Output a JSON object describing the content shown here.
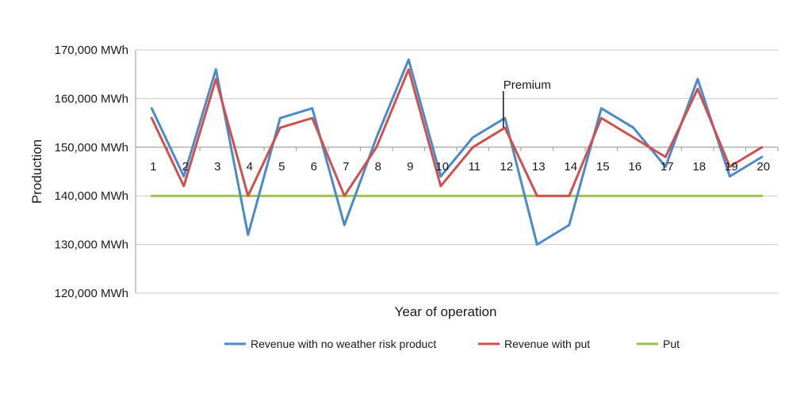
{
  "chart_data": {
    "type": "line",
    "xlabel": "Year of operation",
    "ylabel": "Production",
    "ylim": [
      120000,
      170000
    ],
    "yticks": [
      120000,
      130000,
      140000,
      150000,
      160000,
      170000
    ],
    "ytick_labels": [
      "120,000 MWh",
      "130,000 MWh",
      "140,000 MWh",
      "150,000 MWh",
      "160,000 MWh",
      "170,000 MWh"
    ],
    "grid": true,
    "category_axis_value": 150000,
    "legend_position": "bottom",
    "categories": [
      "1",
      "2",
      "3",
      "4",
      "5",
      "6",
      "7",
      "8",
      "9",
      "10",
      "11",
      "12",
      "13",
      "14",
      "15",
      "16",
      "17",
      "18",
      "19",
      "20"
    ],
    "series": [
      {
        "name": "Revenue with no weather risk product",
        "color": "#4a8ac9",
        "values": [
          158000,
          144000,
          166000,
          132000,
          156000,
          158000,
          134000,
          152000,
          168000,
          144000,
          152000,
          156000,
          130000,
          134000,
          158000,
          154000,
          146000,
          164000,
          144000,
          148000
        ]
      },
      {
        "name": "Revenue with put",
        "color": "#d0504f",
        "values": [
          156000,
          142000,
          164000,
          140000,
          154000,
          156000,
          140000,
          150000,
          166000,
          142000,
          150000,
          154000,
          140000,
          140000,
          156000,
          152000,
          148000,
          162000,
          146000,
          150000
        ]
      },
      {
        "name": "Put",
        "color": "#9bc152",
        "values": [
          140000,
          140000,
          140000,
          140000,
          140000,
          140000,
          140000,
          140000,
          140000,
          140000,
          140000,
          140000,
          140000,
          140000,
          140000,
          140000,
          140000,
          140000,
          140000,
          140000
        ]
      }
    ],
    "annotations": [
      {
        "text": "Premium",
        "category": "12",
        "y_from": 154000,
        "y_to": 156000
      }
    ]
  }
}
